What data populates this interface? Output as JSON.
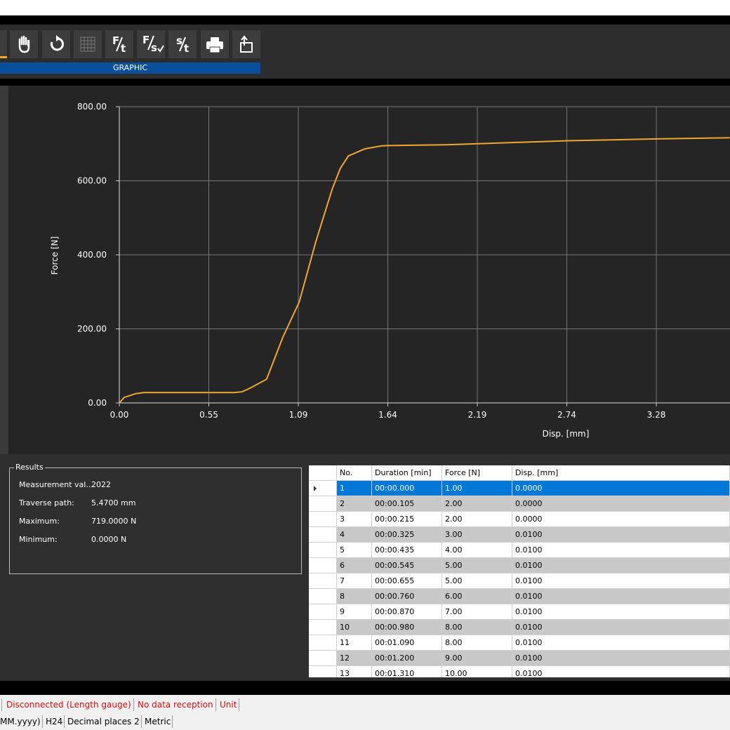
{
  "toolbar": {
    "buttons": [
      {
        "top": "F",
        "bottom": "t"
      },
      {
        "top": "F",
        "bottom": "s"
      },
      {
        "top": "s",
        "bottom": "t"
      }
    ],
    "tab": "GRAPHIC"
  },
  "chart_data": {
    "type": "line",
    "xlabel": "Disp. [mm]",
    "ylabel": "Force [N]",
    "x": [
      0,
      0.03,
      0.1,
      0.15,
      0.3,
      0.55,
      0.7,
      0.75,
      0.8,
      0.9,
      1.0,
      1.1,
      1.2,
      1.3,
      1.35,
      1.4,
      1.5,
      1.6,
      1.64,
      2.0,
      2.19,
      2.74,
      3.28,
      3.73
    ],
    "series": [
      {
        "color": "#f0a830",
        "values": [
          0,
          15,
          25,
          28,
          28,
          28,
          28,
          30,
          40,
          64,
          178,
          273,
          434,
          576,
          633,
          667,
          686,
          694,
          695,
          697,
          700,
          708,
          713,
          716
        ]
      }
    ],
    "xlim": [
      0,
      5.47
    ],
    "ylim": [
      0,
      800
    ],
    "xticks": [
      {
        "value": 0,
        "label": "0.00"
      },
      {
        "value": 0.547,
        "label": "0.55"
      },
      {
        "value": 1.094,
        "label": "1.09"
      },
      {
        "value": 1.641,
        "label": "1.64"
      },
      {
        "value": 2.188,
        "label": "2.19"
      },
      {
        "value": 2.735,
        "label": "2.74"
      },
      {
        "value": 3.282,
        "label": "3.28"
      }
    ],
    "yticks": [
      {
        "value": 0,
        "label": "0.00"
      },
      {
        "value": 200,
        "label": "200.00"
      },
      {
        "value": 400,
        "label": "400.00"
      },
      {
        "value": 600,
        "label": "600.00"
      },
      {
        "value": 800,
        "label": "800.00"
      }
    ],
    "grid": true
  },
  "results": {
    "title": "Results",
    "rows": [
      [
        "Measurement val...",
        "2022"
      ],
      [
        "Traverse path:",
        "5.4700 mm"
      ],
      [
        "Maximum:",
        "719.0000 N"
      ],
      [
        "Minimum:",
        "0.0000 N"
      ]
    ]
  },
  "table": {
    "columns": [
      "No.",
      "Duration [min]",
      "Force [N]",
      "Disp. [mm]"
    ],
    "rows": [
      [
        "1",
        "00:00.000",
        "1.00",
        "0.0000"
      ],
      [
        "2",
        "00:00.105",
        "2.00",
        "0.0000"
      ],
      [
        "3",
        "00:00.215",
        "2.00",
        "0.0000"
      ],
      [
        "4",
        "00:00.325",
        "3.00",
        "0.0100"
      ],
      [
        "5",
        "00:00.435",
        "4.00",
        "0.0100"
      ],
      [
        "6",
        "00:00.545",
        "5.00",
        "0.0100"
      ],
      [
        "7",
        "00:00.655",
        "5.00",
        "0.0100"
      ],
      [
        "8",
        "00:00.760",
        "6.00",
        "0.0100"
      ],
      [
        "9",
        "00:00.870",
        "7.00",
        "0.0100"
      ],
      [
        "10",
        "00:00.980",
        "8.00",
        "0.0100"
      ],
      [
        "11",
        "00:01.090",
        "8.00",
        "0.0100"
      ],
      [
        "12",
        "00:01.200",
        "9.00",
        "0.0100"
      ],
      [
        "13",
        "00:01.310",
        "10.00",
        "0.0100"
      ]
    ]
  },
  "status_bar": {
    "line1": [
      "Disconnected (Length gauge)",
      "No data reception",
      "Unit"
    ],
    "line2": [
      "MM.yyyy)",
      "H24",
      "Decimal places 2",
      "Metric"
    ]
  }
}
